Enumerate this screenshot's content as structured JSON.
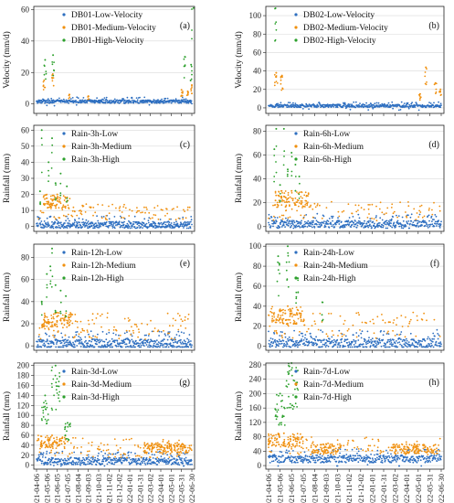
{
  "colors": {
    "low": "#2e6fc0",
    "medium": "#f0900f",
    "high": "#2ca02c",
    "grid": "#d9d9d9",
    "axis": "#222222"
  },
  "date_ticks": [
    "2021-04-06",
    "2021-05-06",
    "2021-06-05",
    "2021-07-05",
    "2021-08-04",
    "2021-09-03",
    "2021-10-03",
    "2021-11-02",
    "2021-12-02",
    "2022-01-01",
    "2022-01-31",
    "2022-03-02",
    "2022-04-01",
    "2022-05-01",
    "2022-05-31",
    "2022-06-30"
  ],
  "chart_data": [
    {
      "type": "scatter",
      "panel": "(a)",
      "ylabel": "Velocity (mm/d)",
      "ylim": [
        -6,
        62
      ],
      "yticks": [
        0,
        20,
        40,
        60
      ],
      "grid": true,
      "legend": "top-left",
      "series": [
        {
          "name": "DB01-Low-Velocity",
          "level": "low",
          "base": 1.5,
          "noise": 2,
          "events": []
        },
        {
          "name": "DB01-Medium-Velocity",
          "level": "medium",
          "base": 0,
          "noise": 0,
          "events": [
            [
              22,
              15,
              3
            ],
            [
              47,
              19,
              3
            ],
            [
              95,
              6,
              2
            ],
            [
              150,
              5,
              2
            ],
            [
              420,
              9,
              4
            ],
            [
              450,
              12,
              3
            ],
            [
              438,
              8,
              3
            ]
          ]
        },
        {
          "name": "DB01-High-Velocity",
          "level": "high",
          "base": 0,
          "noise": 0,
          "events": [
            [
              25,
              28,
              3
            ],
            [
              48,
              31,
              3
            ],
            [
              430,
              30,
              3
            ],
            [
              448,
              25,
              3
            ],
            [
              455,
              61,
              1
            ]
          ]
        }
      ]
    },
    {
      "type": "scatter",
      "panel": "(b)",
      "ylabel": "Velocity (mm/d)",
      "ylim": [
        -6,
        110
      ],
      "yticks": [
        0,
        20,
        40,
        60,
        80,
        100
      ],
      "grid": true,
      "legend": "top-left",
      "series": [
        {
          "name": "DB02-Low-Velocity",
          "level": "low",
          "base": 2,
          "noise": 3,
          "events": []
        },
        {
          "name": "DB02-Medium-Velocity",
          "level": "medium",
          "base": 0,
          "noise": 0,
          "events": [
            [
              20,
              38,
              4
            ],
            [
              35,
              35,
              4
            ],
            [
              395,
              15,
              3
            ],
            [
              410,
              44,
              3
            ],
            [
              435,
              27,
              3
            ],
            [
              448,
              20,
              3
            ]
          ]
        },
        {
          "name": "DB02-High-Velocity",
          "level": "high",
          "base": 0,
          "noise": 0,
          "events": [
            [
              18,
              108,
              3
            ]
          ]
        }
      ]
    },
    {
      "type": "scatter",
      "panel": "(c)",
      "ylabel": "Rainfall (mm)",
      "ylim": [
        -3,
        63
      ],
      "yticks": [
        0,
        10,
        20,
        30,
        40,
        50,
        60
      ],
      "grid": true,
      "legend": "top-left",
      "series": [
        {
          "name": "Rain-3h-Low",
          "level": "low",
          "base": 1,
          "noise": 4,
          "events": []
        },
        {
          "name": "Rain-3h-Medium",
          "level": "medium",
          "base": 4,
          "noise": 10,
          "events": [
            [
              60,
              20,
              40
            ]
          ]
        },
        {
          "name": "Rain-3h-High",
          "level": "high",
          "base": 0,
          "noise": 0,
          "events": [
            [
              15,
              60,
              1
            ],
            [
              45,
              55,
              1
            ],
            [
              70,
              33,
              1
            ],
            [
              10,
              22,
              1
            ],
            [
              55,
              27,
              1
            ],
            [
              88,
              25,
              1
            ],
            [
              35,
              40,
              1
            ]
          ]
        }
      ]
    },
    {
      "type": "scatter",
      "panel": "(d)",
      "ylabel": "Rainfall (mm)",
      "ylim": [
        -4,
        85
      ],
      "yticks": [
        0,
        20,
        40,
        60,
        80
      ],
      "grid": true,
      "legend": "top-left",
      "series": [
        {
          "name": "Rain-6h-Low",
          "level": "low",
          "base": 2,
          "noise": 6,
          "events": []
        },
        {
          "name": "Rain-6h-Medium",
          "level": "medium",
          "base": 5,
          "noise": 16,
          "events": [
            [
              60,
              30,
              45
            ]
          ]
        },
        {
          "name": "Rain-6h-High",
          "level": "high",
          "base": 0,
          "noise": 0,
          "events": [
            [
              20,
              82,
              1
            ],
            [
              40,
              82,
              1
            ],
            [
              60,
              62,
              1
            ],
            [
              70,
              52,
              1
            ],
            [
              50,
              48,
              1
            ],
            [
              30,
              35,
              1
            ],
            [
              80,
              42,
              1
            ],
            [
              15,
              65,
              1
            ]
          ]
        }
      ]
    },
    {
      "type": "scatter",
      "panel": "(e)",
      "ylabel": "Rainfall (mm)",
      "ylim": [
        -4,
        92
      ],
      "yticks": [
        0,
        20,
        40,
        60,
        80
      ],
      "grid": true,
      "legend": "top-left",
      "series": [
        {
          "name": "Rain-12h-Low",
          "level": "low",
          "base": 2,
          "noise": 8,
          "events": []
        },
        {
          "name": "Rain-12h-Medium",
          "level": "medium",
          "base": 6,
          "noise": 24,
          "events": [
            [
              60,
              30,
              45
            ]
          ]
        },
        {
          "name": "Rain-12h-High",
          "level": "high",
          "base": 0,
          "noise": 0,
          "events": [
            [
              45,
              88,
              1
            ],
            [
              30,
              65,
              1
            ],
            [
              55,
              55,
              1
            ],
            [
              70,
              50,
              1
            ],
            [
              15,
              40,
              1
            ],
            [
              85,
              45,
              1
            ],
            [
              40,
              72,
              1
            ]
          ]
        }
      ]
    },
    {
      "type": "scatter",
      "panel": "(f)",
      "ylabel": "Rainfall (mm)",
      "ylim": [
        -4,
        102
      ],
      "yticks": [
        0,
        20,
        40,
        60,
        80,
        100
      ],
      "grid": true,
      "legend": "top-left",
      "series": [
        {
          "name": "Rain-24h-Low",
          "level": "low",
          "base": 3,
          "noise": 9,
          "events": []
        },
        {
          "name": "Rain-24h-Medium",
          "level": "medium",
          "base": 8,
          "noise": 26,
          "events": [
            [
              50,
              40,
              45
            ]
          ]
        },
        {
          "name": "Rain-24h-High",
          "level": "high",
          "base": 0,
          "noise": 0,
          "events": [
            [
              25,
              90,
              4
            ],
            [
              50,
              100,
              4
            ],
            [
              75,
              68,
              4
            ],
            [
              140,
              44,
              2
            ]
          ]
        }
      ]
    },
    {
      "type": "scatter",
      "panel": "(g)",
      "ylabel": "Rainfall (mm)",
      "ylim": [
        -8,
        205
      ],
      "yticks": [
        0,
        20,
        40,
        60,
        80,
        100,
        120,
        140,
        160,
        180,
        200
      ],
      "grid": true,
      "legend": "top-left",
      "series": [
        {
          "name": "Rain-3d-Low",
          "level": "low",
          "base": 8,
          "noise": 14,
          "events": []
        },
        {
          "name": "Rain-3d-Medium",
          "level": "medium",
          "base": 15,
          "noise": 40,
          "events": [
            [
              45,
              60,
              40
            ],
            [
              380,
              45,
              70
            ]
          ]
        },
        {
          "name": "Rain-3d-High",
          "level": "high",
          "base": 0,
          "noise": 0,
          "events": [
            [
              25,
              140,
              10
            ],
            [
              55,
              200,
              12
            ],
            [
              90,
              85,
              8
            ]
          ]
        }
      ]
    },
    {
      "type": "scatter",
      "panel": "(h)",
      "ylabel": "Rainfall (mm)",
      "ylim": [
        -10,
        285
      ],
      "yticks": [
        0,
        40,
        80,
        120,
        160,
        200,
        240,
        280
      ],
      "grid": true,
      "legend": "top-left",
      "series": [
        {
          "name": "Rain-7d-Low",
          "level": "low",
          "base": 18,
          "noise": 20,
          "events": []
        },
        {
          "name": "Rain-7d-Medium",
          "level": "medium",
          "base": 30,
          "noise": 50,
          "events": [
            [
              40,
              90,
              50
            ],
            [
              150,
              60,
              40
            ],
            [
              380,
              60,
              60
            ]
          ]
        },
        {
          "name": "Rain-7d-High",
          "level": "high",
          "base": 0,
          "noise": 0,
          "events": [
            [
              30,
              200,
              14
            ],
            [
              60,
              285,
              18
            ]
          ]
        }
      ]
    }
  ]
}
